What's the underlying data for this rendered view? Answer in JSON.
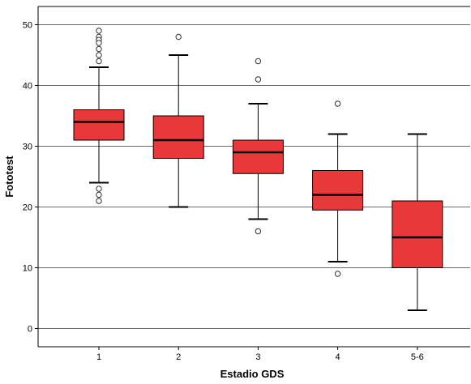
{
  "chart_data": {
    "type": "boxplot",
    "title": "",
    "xlabel": "Estadio GDS",
    "ylabel": "Fototest",
    "ylim": [
      -3,
      53
    ],
    "yticks": [
      0,
      10,
      20,
      30,
      40,
      50
    ],
    "grid": "horizontal",
    "legend": "none",
    "categories": [
      "1",
      "2",
      "3",
      "4",
      "5-6"
    ],
    "boxes": [
      {
        "category": "1",
        "min": 24,
        "q1": 31,
        "median": 34,
        "q3": 36,
        "max": 43,
        "outliers": [
          49,
          48,
          47.5,
          47,
          46,
          45,
          44,
          23,
          22,
          21
        ]
      },
      {
        "category": "2",
        "min": 20,
        "q1": 28,
        "median": 31,
        "q3": 35,
        "max": 45,
        "outliers": [
          48
        ]
      },
      {
        "category": "3",
        "min": 18,
        "q1": 25.5,
        "median": 29,
        "q3": 31,
        "max": 37,
        "outliers": [
          44,
          41,
          16
        ]
      },
      {
        "category": "4",
        "min": 11,
        "q1": 19.5,
        "median": 22,
        "q3": 26,
        "max": 32,
        "outliers": [
          37,
          9
        ]
      },
      {
        "category": "5-6",
        "min": 3,
        "q1": 10,
        "median": 15,
        "q3": 21,
        "max": 32,
        "outliers": []
      }
    ],
    "colors": {
      "box_fill": "#e8383a",
      "box_stroke": "#000000",
      "grid": "#6b6b6b",
      "background": "#ffffff"
    }
  }
}
